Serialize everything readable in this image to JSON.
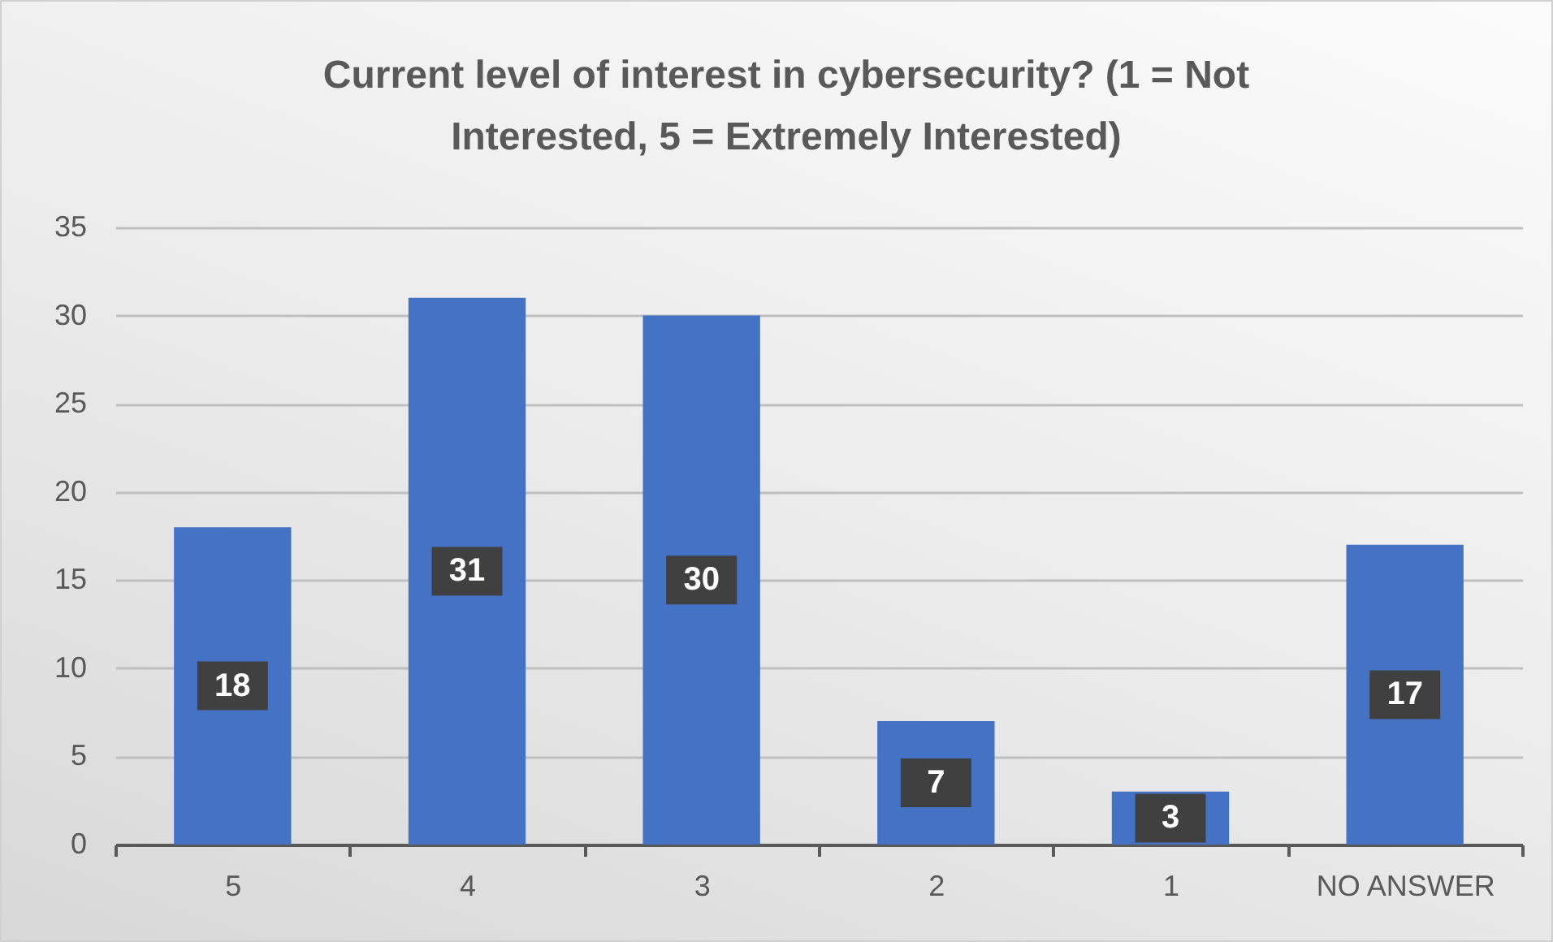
{
  "chart_data": {
    "type": "bar",
    "title": "Current level of interest in cybersecurity? (1 = Not Interested, 5 = Extremely Interested)",
    "categories": [
      "5",
      "4",
      "3",
      "2",
      "1",
      "NO ANSWER"
    ],
    "values": [
      18,
      31,
      30,
      7,
      3,
      17
    ],
    "color": "#4472c4",
    "ylim": [
      0,
      35
    ],
    "yticks": [
      0,
      5,
      10,
      15,
      20,
      25,
      30,
      35
    ],
    "grid": "y",
    "data_labels": true
  }
}
